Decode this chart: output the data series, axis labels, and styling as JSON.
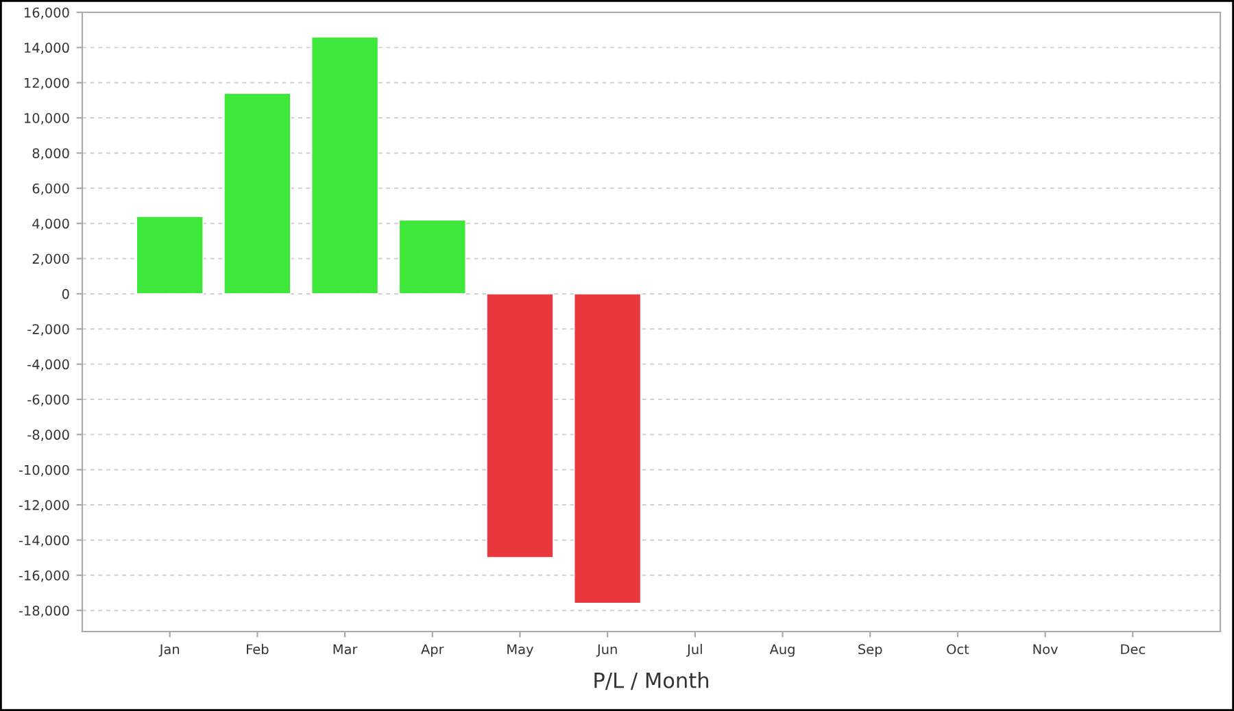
{
  "chart_data": {
    "type": "bar",
    "xlabel": "P/L / Month",
    "categories": [
      "Jan",
      "Feb",
      "Mar",
      "Apr",
      "May",
      "Jun",
      "Jul",
      "Aug",
      "Sep",
      "Oct",
      "Nov",
      "Dec"
    ],
    "values": [
      4400,
      11400,
      14600,
      4200,
      -15000,
      -17600,
      null,
      null,
      null,
      null,
      null,
      null
    ],
    "colors": [
      "#3de83a",
      "#3de83a",
      "#3de83a",
      "#3de83a",
      "#e8383d",
      "#e8383d",
      "#e8383d",
      "#e8383d",
      "#e8383d",
      "#e8383d",
      "#e8383d",
      "#e8383d"
    ],
    "ylim": [
      -19200,
      16000
    ],
    "yticks": [
      {
        "value": -18000,
        "label": "-18,000"
      },
      {
        "value": -16000,
        "label": "-16,000"
      },
      {
        "value": -14000,
        "label": "-14,000"
      },
      {
        "value": -12000,
        "label": "-12,000"
      },
      {
        "value": -10000,
        "label": "-10,000"
      },
      {
        "value": -8000,
        "label": "-8,000"
      },
      {
        "value": -6000,
        "label": "-6,000"
      },
      {
        "value": -4000,
        "label": "-4,000"
      },
      {
        "value": -2000,
        "label": "-2,000"
      },
      0,
      {
        "value": 2000,
        "label": "2,000"
      },
      {
        "value": 4000,
        "label": "4,000"
      },
      {
        "value": 6000,
        "label": "6,000"
      },
      {
        "value": 8000,
        "label": "8,000"
      },
      {
        "value": 10000,
        "label": "10,000"
      },
      {
        "value": 12000,
        "label": "12,000"
      },
      {
        "value": 14000,
        "label": "14,000"
      },
      {
        "value": 16000,
        "label": "16,000"
      }
    ],
    "grid": "y",
    "legend": false
  }
}
